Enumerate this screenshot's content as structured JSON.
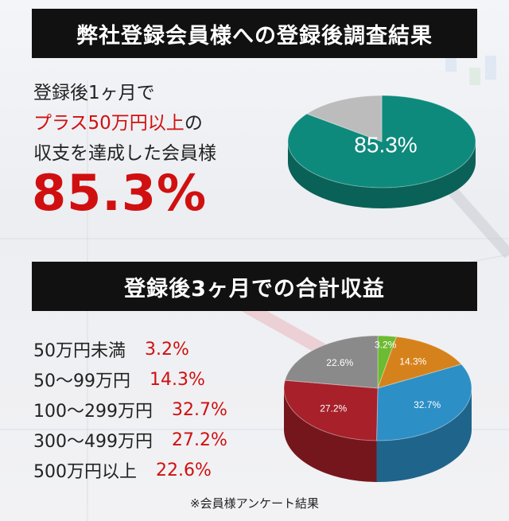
{
  "section1": {
    "title": "弊社登録会員様への登録後調査結果",
    "desc_line1": "登録後1ヶ月で",
    "desc_line2_red": "プラス50万円以上",
    "desc_line2_tail": "の",
    "desc_line3": "収支を達成した会員様",
    "big_value": "85.3%",
    "pie_label": "85.3%"
  },
  "section2": {
    "title": "登録後3ヶ月での合計収益",
    "legend": [
      {
        "label": "50万円未満",
        "value": "3.2%"
      },
      {
        "label": "50〜99万円",
        "value": "14.3%"
      },
      {
        "label": "100〜299万円",
        "value": "32.7%"
      },
      {
        "label": "300〜499万円",
        "value": "27.2%"
      },
      {
        "label": "500万円以上",
        "value": "22.6%"
      }
    ]
  },
  "footnote": "※会員様アンケート結果",
  "chart_data": [
    {
      "type": "pie",
      "title": "",
      "categories": [
        "",
        ""
      ],
      "values": [
        85.3,
        14.7
      ],
      "colors": [
        "#0e8a7c",
        "#bcbcbc"
      ]
    },
    {
      "type": "pie",
      "title": "",
      "categories": [
        "50万円未満",
        "50〜99万円",
        "100〜299万円",
        "300〜499万円",
        "500万円以上"
      ],
      "values": [
        3.2,
        14.3,
        32.7,
        27.2,
        22.6
      ],
      "colors": [
        "#6cbb32",
        "#d6821c",
        "#2c8fc6",
        "#a7202a",
        "#8a8a8a"
      ]
    }
  ]
}
